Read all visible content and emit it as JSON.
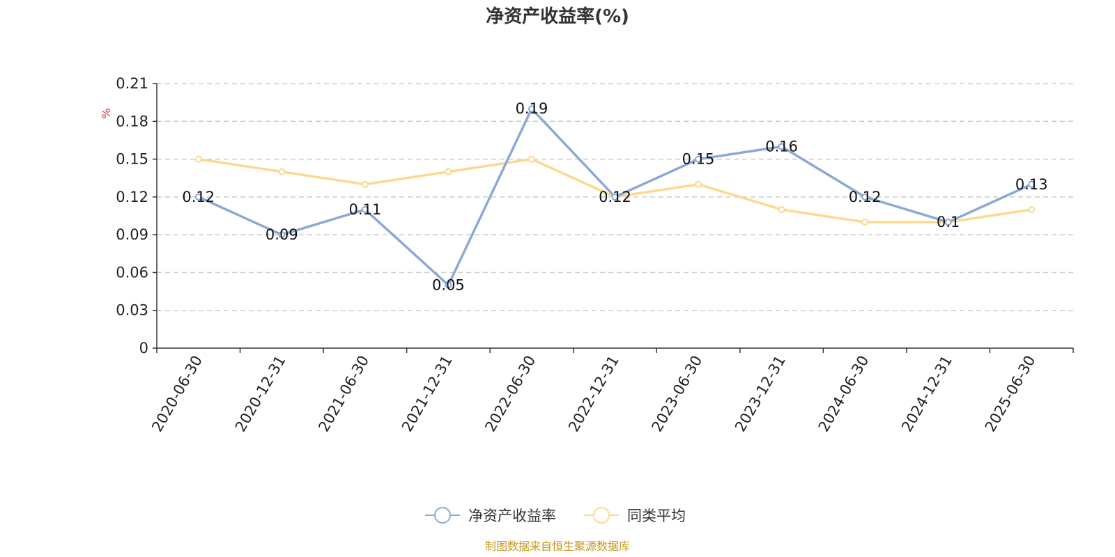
{
  "chart_data": {
    "type": "line",
    "title": "净资产收益率(%)",
    "ylabel": "%",
    "xlabel": "",
    "ylim": [
      0,
      0.21
    ],
    "yticks": [
      "0",
      "0.03",
      "0.06",
      "0.09",
      "0.12",
      "0.15",
      "0.18",
      "0.21"
    ],
    "categories": [
      "2020-06-30",
      "2020-12-31",
      "2021-06-30",
      "2021-12-31",
      "2022-06-30",
      "2022-12-31",
      "2023-06-30",
      "2023-12-31",
      "2024-06-30",
      "2024-12-31",
      "2025-06-30"
    ],
    "series": [
      {
        "name": "净资产收益率",
        "color": "#8ba9d6",
        "values": [
          0.12,
          0.09,
          0.11,
          0.05,
          0.19,
          0.12,
          0.15,
          0.16,
          0.12,
          0.1,
          0.13
        ],
        "labels": [
          "0.12",
          "0.09",
          "0.11",
          "0.05",
          "0.19",
          "0.12",
          "0.15",
          "0.16",
          "0.12",
          "0.1",
          "0.13"
        ]
      },
      {
        "name": "同类平均",
        "color": "#fdd88f",
        "values": [
          0.15,
          0.14,
          0.13,
          0.14,
          0.15,
          0.12,
          0.13,
          0.11,
          0.1,
          0.1,
          0.11
        ]
      }
    ],
    "grid": true,
    "legend": "bottom-center",
    "source": "制图数据来自恒生聚源数据库"
  }
}
